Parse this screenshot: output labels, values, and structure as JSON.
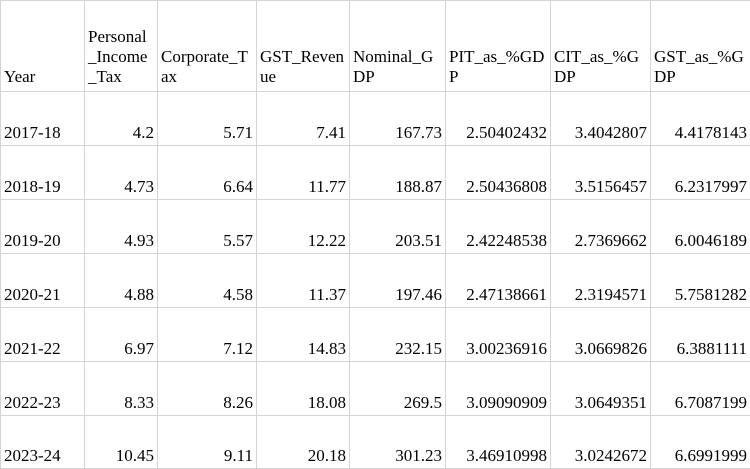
{
  "table": {
    "headers": [
      "Year",
      "Personal_Income_Tax",
      "Corporate_Tax",
      "GST_Revenue",
      "Nominal_GDP",
      "PIT_as_%GDP",
      "CIT_as_%GDP",
      "GST_as_%GDP"
    ],
    "rows": [
      [
        "2017-18",
        "4.2",
        "5.71",
        "7.41",
        "167.73",
        "2.50402432",
        "3.4042807",
        "4.4178143"
      ],
      [
        "2018-19",
        "4.73",
        "6.64",
        "11.77",
        "188.87",
        "2.50436808",
        "3.5156457",
        "6.2317997"
      ],
      [
        "2019-20",
        "4.93",
        "5.57",
        "12.22",
        "203.51",
        "2.42248538",
        "2.7369662",
        "6.0046189"
      ],
      [
        "2020-21",
        "4.88",
        "4.58",
        "11.37",
        "197.46",
        "2.47138661",
        "2.3194571",
        "5.7581282"
      ],
      [
        "2021-22",
        "6.97",
        "7.12",
        "14.83",
        "232.15",
        "3.00236916",
        "3.0669826",
        "6.3881111"
      ],
      [
        "2022-23",
        "8.33",
        "8.26",
        "18.08",
        "269.5",
        "3.09090909",
        "3.0649351",
        "6.7087199"
      ],
      [
        "2023-24",
        "10.45",
        "9.11",
        "20.18",
        "301.23",
        "3.46910998",
        "3.0242672",
        "6.6991999"
      ]
    ]
  }
}
